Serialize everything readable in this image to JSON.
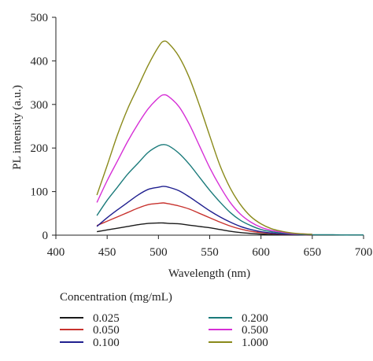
{
  "chart_data": {
    "type": "line",
    "title": "",
    "xlabel": "Wavelength (nm)",
    "ylabel": "PL intensity (a.u.)",
    "xlim": [
      400,
      700
    ],
    "ylim": [
      0,
      500
    ],
    "x_ticks": [
      "400",
      "450",
      "500",
      "550",
      "600",
      "650",
      "700"
    ],
    "y_ticks": [
      "0",
      "100",
      "200",
      "300",
      "400",
      "500"
    ],
    "legend_title": "Concentration (mg/mL)",
    "legend_placement": "bottom",
    "x": [
      440,
      450,
      460,
      470,
      480,
      490,
      500,
      505,
      510,
      520,
      530,
      540,
      550,
      560,
      570,
      580,
      590,
      600,
      610,
      620,
      630,
      640,
      650,
      660,
      670,
      680,
      690,
      700
    ],
    "series": [
      {
        "name": "0.025",
        "color": "#1a1a1a",
        "values": [
          8,
          12,
          16,
          20,
          24,
          27,
          28,
          28,
          27,
          26,
          23,
          20,
          17,
          13,
          9,
          6,
          4,
          2.5,
          1.5,
          1,
          0.5,
          0.3,
          0.2,
          null,
          null,
          null,
          null,
          null
        ]
      },
      {
        "name": "0.050",
        "color": "#c8322e",
        "values": [
          22,
          32,
          42,
          52,
          62,
          70,
          73,
          74,
          72,
          67,
          60,
          50,
          40,
          30,
          21,
          14,
          9,
          6,
          4,
          2.5,
          1.5,
          1,
          0.5,
          null,
          null,
          null,
          null,
          null
        ]
      },
      {
        "name": "0.100",
        "color": "#1f1f8f",
        "values": [
          20,
          40,
          58,
          75,
          92,
          105,
          110,
          112,
          110,
          102,
          88,
          72,
          56,
          42,
          30,
          20,
          13,
          8,
          5,
          3,
          2,
          1,
          1,
          null,
          null,
          null,
          null,
          null
        ]
      },
      {
        "name": "0.200",
        "color": "#1a7a7a",
        "values": [
          45,
          80,
          110,
          140,
          165,
          190,
          205,
          208,
          205,
          188,
          163,
          133,
          103,
          76,
          52,
          34,
          22,
          13,
          8,
          5,
          3,
          2,
          1,
          1,
          1,
          0.5,
          0.5,
          0.5
        ]
      },
      {
        "name": "0.500",
        "color": "#d62fd6",
        "values": [
          75,
          125,
          170,
          215,
          255,
          290,
          315,
          322,
          318,
          295,
          255,
          205,
          155,
          112,
          75,
          48,
          30,
          18,
          11,
          7,
          4,
          3,
          2,
          null,
          null,
          null,
          null,
          null
        ]
      },
      {
        "name": "1.000",
        "color": "#8a8a1a",
        "values": [
          92,
          160,
          230,
          290,
          340,
          390,
          432,
          445,
          440,
          410,
          362,
          298,
          228,
          160,
          108,
          70,
          43,
          26,
          15,
          9,
          5,
          3,
          2,
          null,
          null,
          null,
          null,
          null
        ]
      }
    ]
  }
}
